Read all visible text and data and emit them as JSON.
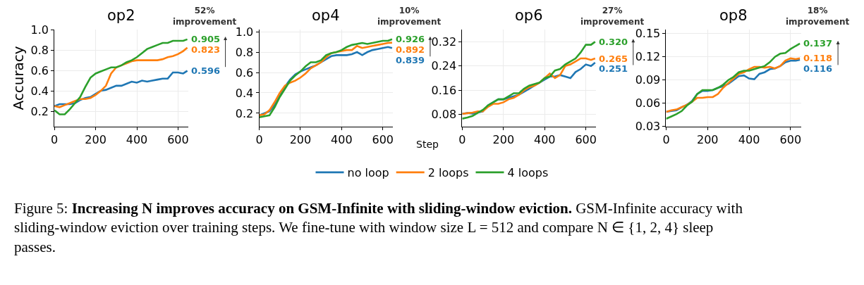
{
  "chart_data": [
    {
      "type": "line",
      "title": "op2",
      "ylabel": "Accuracy",
      "x": [
        0,
        25,
        50,
        75,
        100,
        125,
        150,
        175,
        200,
        225,
        250,
        275,
        300,
        325,
        350,
        375,
        400,
        425,
        450,
        475,
        500,
        525,
        550,
        575,
        600,
        625,
        645
      ],
      "series": [
        {
          "name": "no loop",
          "color": "#1f77b4",
          "values": [
            0.25,
            0.27,
            0.27,
            0.27,
            0.28,
            0.31,
            0.33,
            0.34,
            0.37,
            0.4,
            0.41,
            0.43,
            0.45,
            0.45,
            0.47,
            0.49,
            0.48,
            0.5,
            0.49,
            0.5,
            0.51,
            0.52,
            0.52,
            0.58,
            0.58,
            0.57,
            0.596
          ],
          "value_labels": [
            null,
            null,
            null,
            null,
            null,
            null,
            null,
            null,
            null,
            null,
            null,
            null,
            null,
            null,
            null,
            null,
            null,
            null,
            null,
            null,
            null,
            null,
            null,
            null,
            null,
            null,
            "0.596"
          ]
        },
        {
          "name": "2 loops",
          "color": "#ff7f0e",
          "values": [
            0.25,
            0.24,
            0.26,
            0.28,
            0.3,
            0.32,
            0.32,
            0.33,
            0.36,
            0.4,
            0.45,
            0.57,
            0.63,
            0.65,
            0.67,
            0.69,
            0.7,
            0.7,
            0.7,
            0.7,
            0.7,
            0.71,
            0.73,
            0.74,
            0.76,
            0.79,
            0.823
          ],
          "value_labels": [
            null,
            null,
            null,
            null,
            null,
            null,
            null,
            null,
            null,
            null,
            null,
            null,
            null,
            null,
            null,
            null,
            null,
            null,
            null,
            null,
            null,
            null,
            null,
            null,
            null,
            null,
            "0.823"
          ]
        },
        {
          "name": "4 loops",
          "color": "#2ca02c",
          "values": [
            0.21,
            0.17,
            0.17,
            0.22,
            0.28,
            0.34,
            0.44,
            0.53,
            0.57,
            0.59,
            0.61,
            0.63,
            0.63,
            0.65,
            0.68,
            0.7,
            0.73,
            0.77,
            0.81,
            0.83,
            0.85,
            0.87,
            0.87,
            0.89,
            0.89,
            0.89,
            0.905
          ],
          "value_labels": [
            null,
            null,
            null,
            null,
            null,
            null,
            null,
            null,
            null,
            null,
            null,
            null,
            null,
            null,
            null,
            null,
            null,
            null,
            null,
            null,
            null,
            null,
            null,
            null,
            null,
            null,
            "0.905"
          ]
        }
      ],
      "xlim": [
        0,
        650
      ],
      "xticks": [
        0,
        200,
        400,
        600
      ],
      "ylim": [
        0.05,
        1.0
      ],
      "yticks": [
        0.2,
        0.4,
        0.6,
        0.8,
        {
          "value": 1,
          "label": "1.0"
        }
      ],
      "grid": true,
      "legend": "bottom",
      "annotations": [
        "52% improvement",
        "Figure 5:",
        "Increasing N improves accuracy on GSM-Infinite with sliding-window eviction.",
        "GSM-Infinite accuracy with sliding-window eviction over training steps. We fine-tune with window size L = 512 and compare N ∈ {1, 2, 4} sleep passes."
      ]
    },
    {
      "type": "line",
      "title": "op4",
      "xlabel": "Step",
      "x": [
        0,
        25,
        50,
        75,
        100,
        125,
        150,
        175,
        200,
        225,
        250,
        275,
        300,
        325,
        350,
        375,
        400,
        425,
        450,
        475,
        500,
        525,
        550,
        575,
        600,
        625,
        645
      ],
      "series": [
        {
          "color": "#1f77b4",
          "values": [
            0.18,
            0.2,
            0.22,
            0.28,
            0.37,
            0.46,
            0.53,
            0.58,
            0.61,
            0.63,
            0.65,
            0.67,
            0.7,
            0.73,
            0.76,
            0.77,
            0.77,
            0.77,
            0.78,
            0.8,
            0.77,
            0.8,
            0.82,
            0.83,
            0.84,
            0.85,
            0.839
          ],
          "value_labels": [
            null,
            null,
            null,
            null,
            null,
            null,
            null,
            null,
            null,
            null,
            null,
            null,
            null,
            null,
            null,
            null,
            null,
            null,
            null,
            null,
            null,
            null,
            null,
            null,
            null,
            null,
            "0.839"
          ]
        },
        {
          "color": "#ff7f0e",
          "values": [
            0.18,
            0.19,
            0.23,
            0.31,
            0.4,
            0.47,
            0.5,
            0.52,
            0.55,
            0.59,
            0.64,
            0.67,
            0.7,
            0.75,
            0.79,
            0.8,
            0.81,
            0.82,
            0.82,
            0.86,
            0.84,
            0.85,
            0.86,
            0.87,
            0.88,
            0.89,
            0.892
          ],
          "value_labels": [
            null,
            null,
            null,
            null,
            null,
            null,
            null,
            null,
            null,
            null,
            null,
            null,
            null,
            null,
            null,
            null,
            null,
            null,
            null,
            null,
            null,
            null,
            null,
            null,
            null,
            null,
            "0.892"
          ]
        },
        {
          "color": "#2ca02c",
          "values": [
            0.16,
            0.17,
            0.18,
            0.26,
            0.36,
            0.44,
            0.52,
            0.57,
            0.61,
            0.66,
            0.7,
            0.7,
            0.72,
            0.77,
            0.79,
            0.8,
            0.82,
            0.85,
            0.87,
            0.88,
            0.89,
            0.88,
            0.89,
            0.9,
            0.91,
            0.91,
            0.926
          ],
          "value_labels": [
            null,
            null,
            null,
            null,
            null,
            null,
            null,
            null,
            null,
            null,
            null,
            null,
            null,
            null,
            null,
            null,
            null,
            null,
            null,
            null,
            null,
            null,
            null,
            null,
            null,
            null,
            "0.926"
          ]
        }
      ],
      "xlim": [
        0,
        650
      ],
      "xticks": [
        0,
        200,
        400,
        600
      ],
      "ylim": [
        0.07,
        1.02
      ],
      "yticks": [
        0.2,
        0.4,
        0.6,
        0.8,
        {
          "value": 1,
          "label": "1.0"
        }
      ],
      "grid": true,
      "annotations": [
        "10% improvement"
      ]
    },
    {
      "type": "line",
      "title": "op6",
      "x": [
        0,
        25,
        50,
        75,
        100,
        125,
        150,
        175,
        200,
        225,
        250,
        275,
        300,
        325,
        350,
        375,
        400,
        425,
        450,
        475,
        500,
        525,
        550,
        575,
        600,
        625,
        645
      ],
      "series": [
        {
          "color": "#1f77b4",
          "values": [
            0.082,
            0.085,
            0.083,
            0.086,
            0.09,
            0.11,
            0.12,
            0.13,
            0.13,
            0.135,
            0.14,
            0.145,
            0.155,
            0.165,
            0.175,
            0.185,
            0.195,
            0.205,
            0.205,
            0.21,
            0.205,
            0.2,
            0.22,
            0.23,
            0.245,
            0.24,
            0.251
          ],
          "value_labels": [
            null,
            null,
            null,
            null,
            null,
            null,
            null,
            null,
            null,
            null,
            null,
            null,
            null,
            null,
            null,
            null,
            null,
            null,
            null,
            null,
            null,
            null,
            null,
            null,
            null,
            null,
            "0.251"
          ]
        },
        {
          "color": "#ff7f0e",
          "values": [
            0.082,
            0.084,
            0.086,
            0.09,
            0.09,
            0.105,
            0.115,
            0.115,
            0.12,
            0.13,
            0.135,
            0.145,
            0.16,
            0.17,
            0.175,
            0.185,
            0.2,
            0.215,
            0.2,
            0.21,
            0.24,
            0.245,
            0.255,
            0.265,
            0.265,
            0.26,
            0.265
          ],
          "value_labels": [
            null,
            null,
            null,
            null,
            null,
            null,
            null,
            null,
            null,
            null,
            null,
            null,
            null,
            null,
            null,
            null,
            null,
            null,
            null,
            null,
            null,
            null,
            null,
            null,
            null,
            null,
            "0.265"
          ]
        },
        {
          "color": "#2ca02c",
          "values": [
            0.066,
            0.07,
            0.075,
            0.085,
            0.095,
            0.11,
            0.12,
            0.13,
            0.13,
            0.14,
            0.15,
            0.15,
            0.165,
            0.175,
            0.18,
            0.185,
            0.2,
            0.205,
            0.225,
            0.23,
            0.245,
            0.255,
            0.265,
            0.285,
            0.31,
            0.31,
            0.32
          ],
          "value_labels": [
            null,
            null,
            null,
            null,
            null,
            null,
            null,
            null,
            null,
            null,
            null,
            null,
            null,
            null,
            null,
            null,
            null,
            null,
            null,
            null,
            null,
            null,
            null,
            null,
            null,
            null,
            "0.320"
          ]
        }
      ],
      "xlim": [
        0,
        650
      ],
      "xticks": [
        0,
        200,
        400,
        600
      ],
      "ylim": [
        0.04,
        0.36
      ],
      "yticks": [
        0.08,
        0.16,
        0.24,
        0.32
      ],
      "grid": true,
      "annotations": [
        "27% improvement"
      ]
    },
    {
      "type": "line",
      "title": "op8",
      "x": [
        0,
        25,
        50,
        75,
        100,
        125,
        150,
        175,
        200,
        225,
        250,
        275,
        300,
        325,
        350,
        375,
        400,
        425,
        450,
        475,
        500,
        525,
        550,
        575,
        600,
        625,
        645
      ],
      "series": [
        {
          "color": "#1f77b4",
          "values": [
            0.049,
            0.05,
            0.051,
            0.055,
            0.058,
            0.063,
            0.072,
            0.076,
            0.076,
            0.077,
            0.08,
            0.082,
            0.085,
            0.09,
            0.095,
            0.096,
            0.092,
            0.091,
            0.098,
            0.1,
            0.104,
            0.105,
            0.108,
            0.113,
            0.115,
            0.115,
            0.116
          ],
          "value_labels": [
            null,
            null,
            null,
            null,
            null,
            null,
            null,
            null,
            null,
            null,
            null,
            null,
            null,
            null,
            null,
            null,
            null,
            null,
            null,
            null,
            null,
            null,
            null,
            null,
            null,
            null,
            "0.116"
          ]
        },
        {
          "color": "#ff7f0e",
          "values": [
            0.049,
            0.051,
            0.052,
            0.055,
            0.058,
            0.062,
            0.067,
            0.067,
            0.068,
            0.068,
            0.072,
            0.08,
            0.086,
            0.092,
            0.098,
            0.1,
            0.104,
            0.107,
            0.107,
            0.106,
            0.107,
            0.105,
            0.108,
            0.115,
            0.118,
            0.117,
            0.118
          ],
          "value_labels": [
            null,
            null,
            null,
            null,
            null,
            null,
            null,
            null,
            null,
            null,
            null,
            null,
            null,
            null,
            null,
            null,
            null,
            null,
            null,
            null,
            null,
            null,
            null,
            null,
            null,
            null,
            "0.118"
          ]
        },
        {
          "color": "#2ca02c",
          "values": [
            0.04,
            0.043,
            0.046,
            0.05,
            0.057,
            0.062,
            0.072,
            0.077,
            0.077,
            0.077,
            0.08,
            0.084,
            0.09,
            0.094,
            0.1,
            0.102,
            0.102,
            0.104,
            0.106,
            0.108,
            0.113,
            0.12,
            0.124,
            0.125,
            0.13,
            0.134,
            0.137
          ],
          "value_labels": [
            null,
            null,
            null,
            null,
            null,
            null,
            null,
            null,
            null,
            null,
            null,
            null,
            null,
            null,
            null,
            null,
            null,
            null,
            null,
            null,
            null,
            null,
            null,
            null,
            null,
            null,
            "0.137"
          ]
        }
      ],
      "xlim": [
        0,
        650
      ],
      "xticks": [
        0,
        200,
        400,
        600
      ],
      "ylim": [
        0.03,
        0.155
      ],
      "yticks": [
        0.03,
        0.06,
        0.09,
        0.12,
        0.15
      ],
      "grid": true,
      "annotations": [
        "18% improvement"
      ]
    }
  ]
}
